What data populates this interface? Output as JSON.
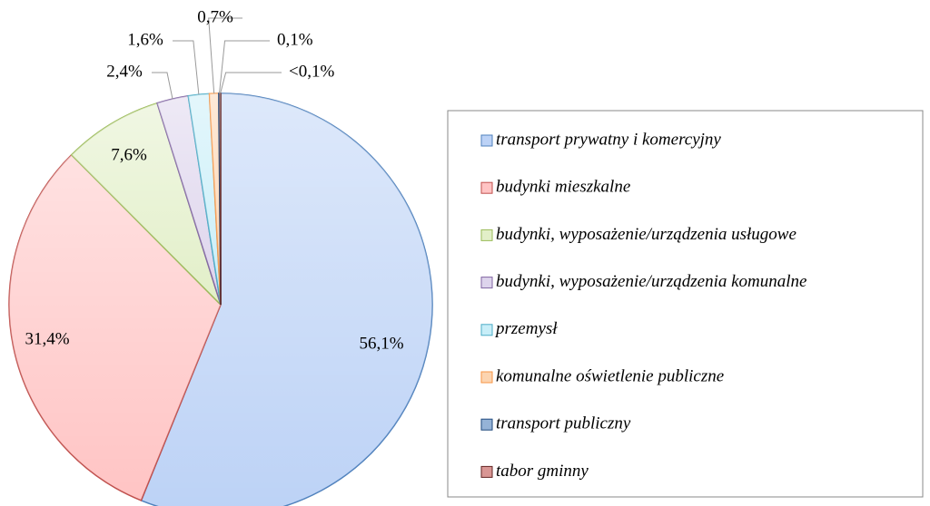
{
  "chart_data": {
    "type": "pie",
    "categories": [
      "transport prywatny i komercyjny",
      "budynki mieszkalne",
      "budynki, wyposażenie/urządzenia usługowe",
      "budynki, wyposażenie/urządzenia komunalne",
      "przemysł",
      "komunalne oświetlenie publiczne",
      "transport publiczny",
      "tabor gminny"
    ],
    "values": [
      56.1,
      31.4,
      7.6,
      2.4,
      1.6,
      0.7,
      0.1,
      0.05
    ],
    "value_labels": [
      "56,1%",
      "31,4%",
      "7,6%",
      "2,4%",
      "1,6%",
      "0,7%",
      "0,1%",
      "<0,1%"
    ],
    "colors": [
      "#bcd2f6",
      "#ffc4c4",
      "#e2efc8",
      "#ddd4ec",
      "#c8eef8",
      "#fcd4b0",
      "#95b3d7",
      "#d99694"
    ],
    "edge_colors": [
      "#4f81bd",
      "#c0504d",
      "#9bbb59",
      "#8064a2",
      "#4bacc6",
      "#f79646",
      "#1f497d",
      "#632523"
    ],
    "legend": "right"
  }
}
